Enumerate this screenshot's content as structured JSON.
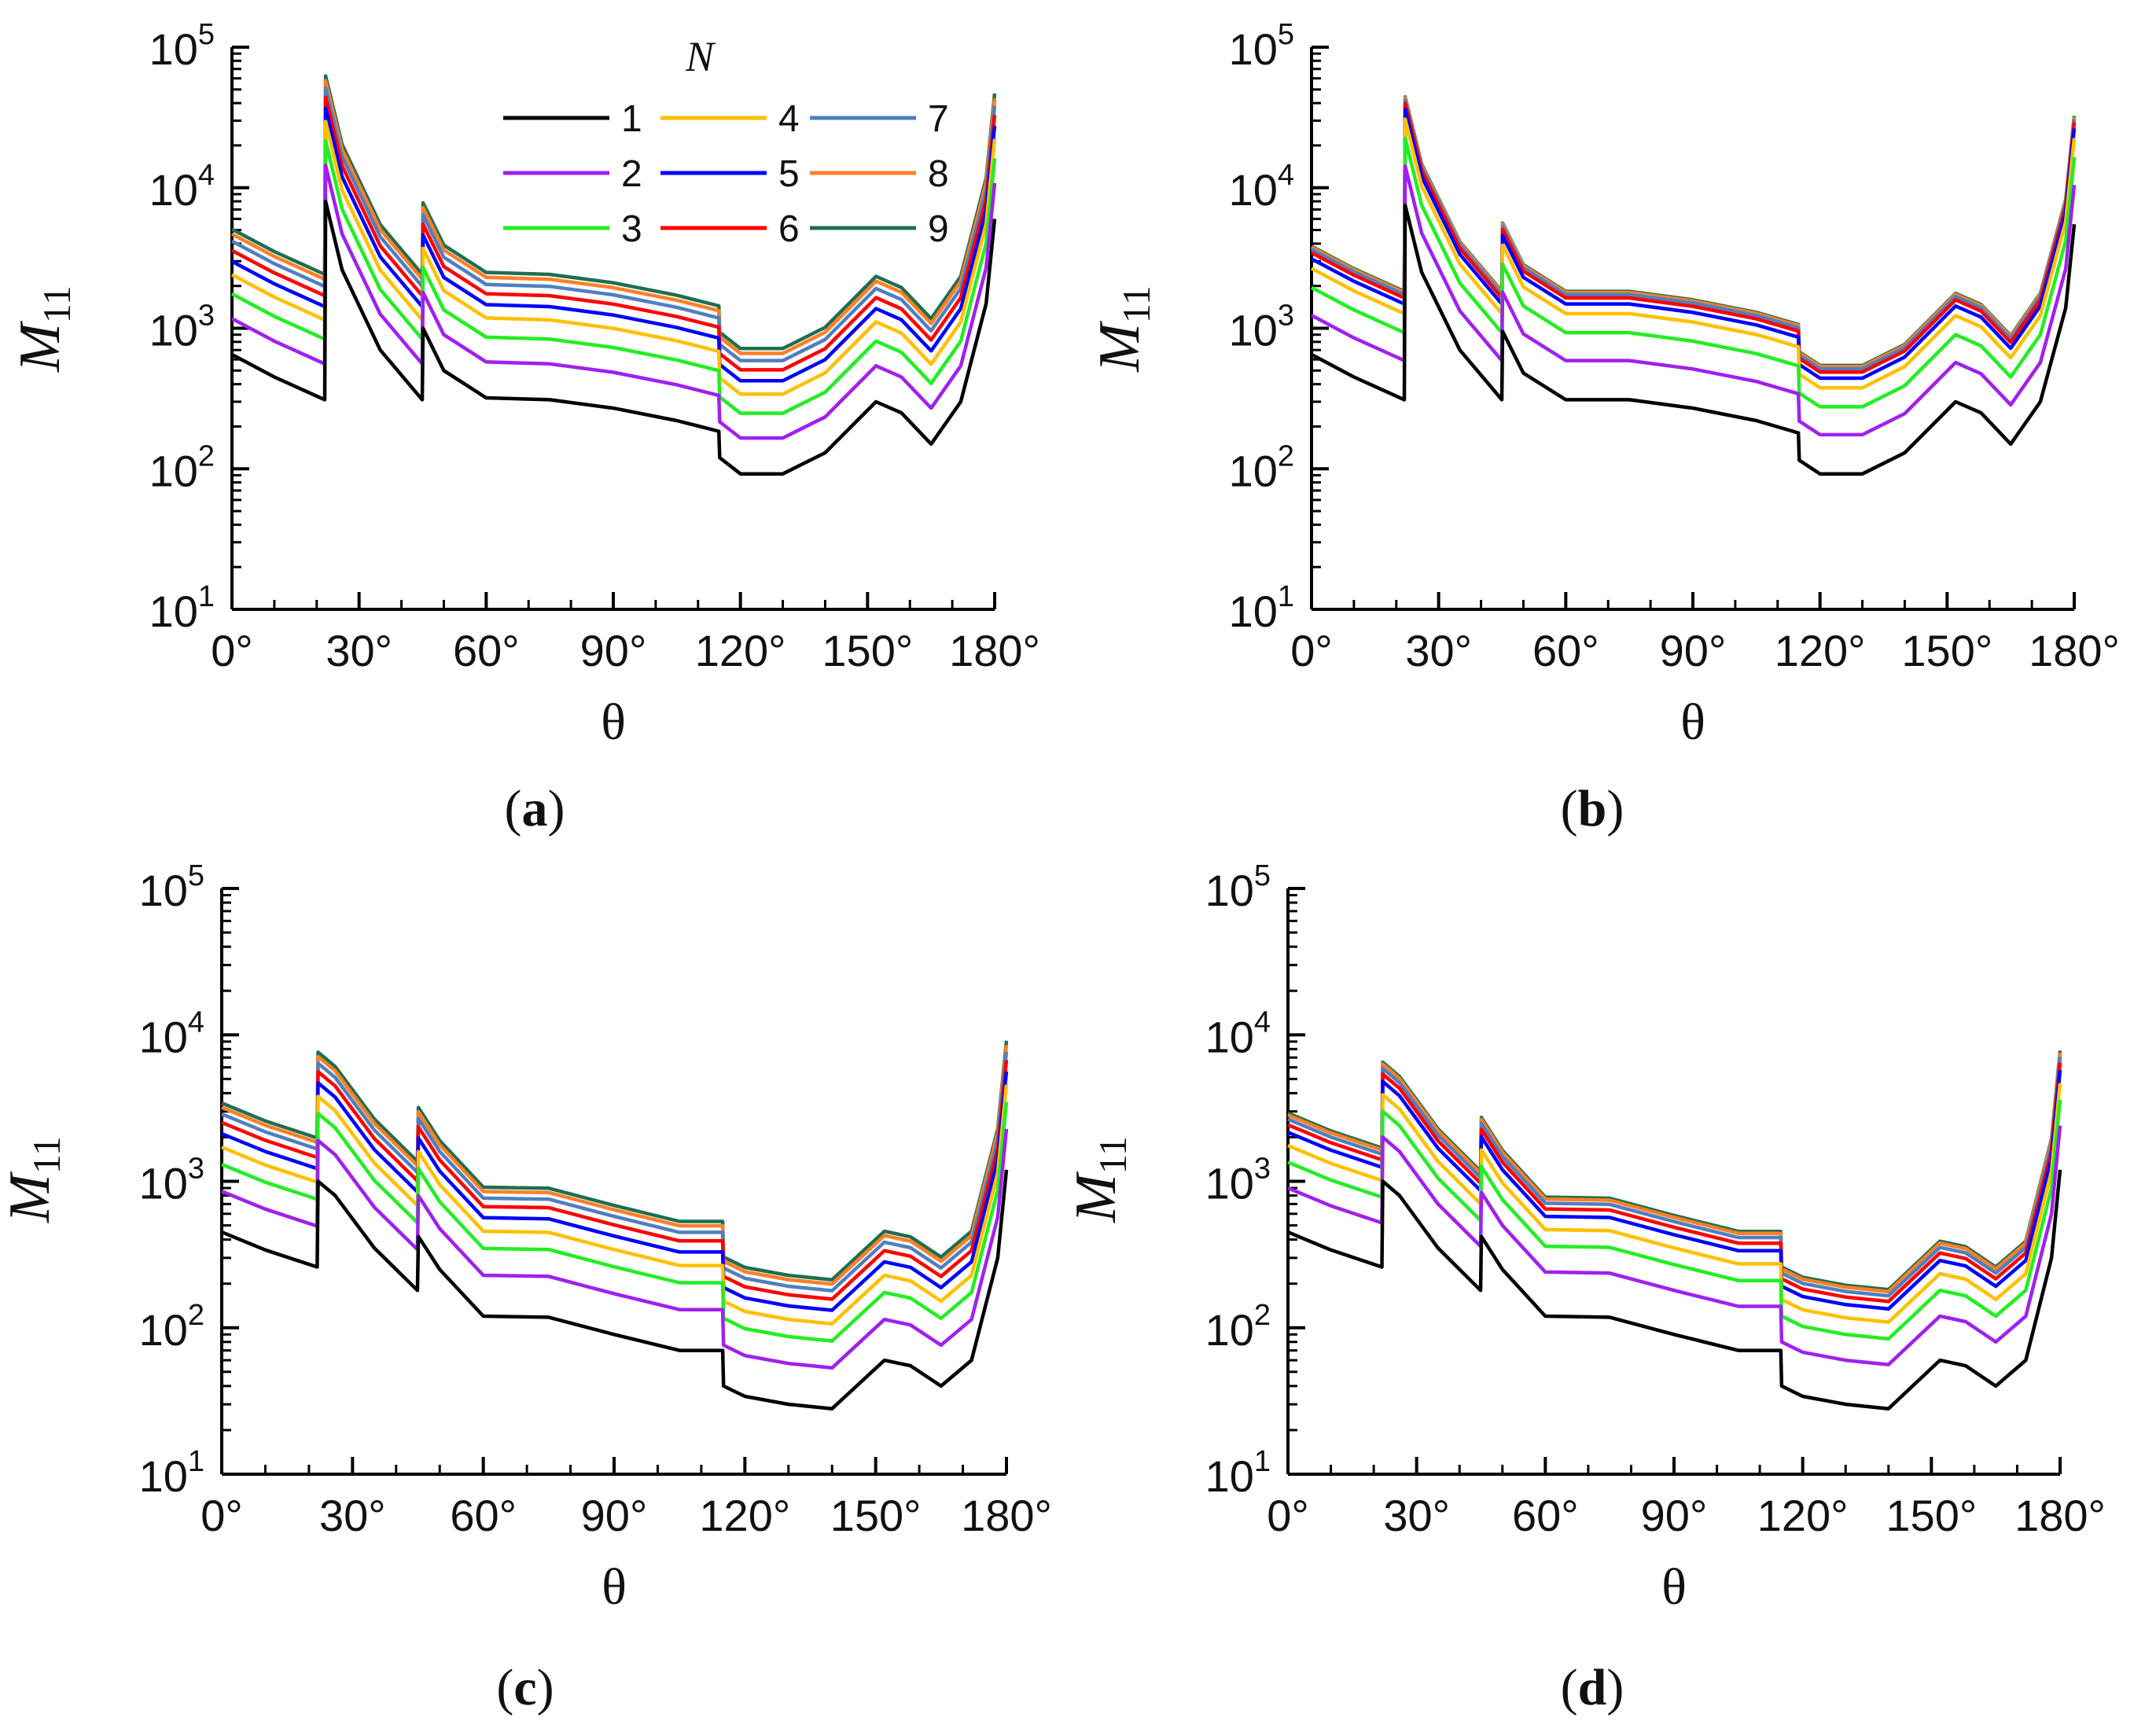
{
  "figure": {
    "description": "Four panels of M11 versus scattering angle theta for N = 1..9"
  },
  "legend": {
    "title": "N",
    "entries": [
      "1",
      "2",
      "3",
      "4",
      "5",
      "6",
      "7",
      "8",
      "9"
    ],
    "colors": [
      "#000000",
      "#a020f0",
      "#22ee22",
      "#ffc000",
      "#0000ff",
      "#ff0000",
      "#4f7fc0",
      "#ff7f27",
      "#1f6f4f"
    ]
  },
  "chart_data": [
    {
      "panel": "a",
      "label_text": "a",
      "type": "line",
      "xlabel": "θ",
      "ylabel": "M",
      "ylabel_sub": "11",
      "yscale": "log",
      "xlim": [
        0,
        180
      ],
      "ylim": [
        10,
        100000
      ],
      "xticks": [
        "0°",
        "30°",
        "60°",
        "90°",
        "120°",
        "150°",
        "180°"
      ],
      "yticks_exp": [
        "1",
        "2",
        "3",
        "4",
        "5"
      ],
      "base_x": [
        0,
        10,
        21.9,
        22.1,
        26,
        35,
        44.9,
        45.1,
        50,
        60,
        75,
        90,
        105,
        114.9,
        115.1,
        120,
        130,
        140,
        152,
        158,
        165,
        172,
        178,
        180
      ],
      "base_y": [
        650,
        450,
        310,
        8000,
        2600,
        700,
        310,
        1000,
        500,
        320,
        310,
        270,
        220,
        185,
        120,
        92,
        92,
        130,
        300,
        250,
        150,
        300,
        1500,
        6000
      ],
      "series": [
        {
          "name": "1",
          "factor": 1.0
        },
        {
          "name": "2",
          "factor": 1.8
        },
        {
          "name": "3",
          "factor": 2.7
        },
        {
          "name": "4",
          "factor": 3.7
        },
        {
          "name": "5",
          "factor": 4.6
        },
        {
          "name": "6",
          "factor": 5.5
        },
        {
          "name": "7",
          "factor": 6.4
        },
        {
          "name": "8",
          "factor": 7.2
        },
        {
          "name": "9",
          "factor": 7.8
        }
      ],
      "show_legend": true
    },
    {
      "panel": "b",
      "label_text": "b",
      "type": "line",
      "xlabel": "θ",
      "ylabel": "M",
      "ylabel_sub": "11",
      "yscale": "log",
      "xlim": [
        0,
        180
      ],
      "ylim": [
        10,
        100000
      ],
      "xticks": [
        "0°",
        "30°",
        "60°",
        "90°",
        "120°",
        "150°",
        "180°"
      ],
      "yticks_exp": [
        "1",
        "2",
        "3",
        "4",
        "5"
      ],
      "base_x": [
        0,
        10,
        21.9,
        22.1,
        26,
        35,
        44.9,
        45.1,
        50,
        60,
        75,
        90,
        105,
        114.9,
        115.1,
        120,
        130,
        140,
        152,
        158,
        165,
        172,
        178,
        180
      ],
      "base_y": [
        650,
        450,
        310,
        7500,
        2500,
        700,
        310,
        950,
        480,
        310,
        310,
        270,
        220,
        180,
        115,
        92,
        92,
        130,
        300,
        250,
        150,
        300,
        1400,
        5500
      ],
      "series": [
        {
          "name": "1",
          "factor": 1.0
        },
        {
          "name": "2",
          "factor": 1.9
        },
        {
          "name": "3",
          "factor": 3.0
        },
        {
          "name": "4",
          "factor": 4.1
        },
        {
          "name": "5",
          "factor": 4.8
        },
        {
          "name": "6",
          "factor": 5.3
        },
        {
          "name": "7",
          "factor": 5.6
        },
        {
          "name": "8",
          "factor": 5.8
        },
        {
          "name": "9",
          "factor": 5.9
        }
      ],
      "show_legend": false
    },
    {
      "panel": "c",
      "label_text": "c",
      "type": "line",
      "xlabel": "θ",
      "ylabel": "M",
      "ylabel_sub": "11",
      "yscale": "log",
      "xlim": [
        0,
        180
      ],
      "ylim": [
        10,
        100000
      ],
      "xticks": [
        "0°",
        "30°",
        "60°",
        "90°",
        "120°",
        "150°",
        "180°"
      ],
      "yticks_exp": [
        "1",
        "2",
        "3",
        "4",
        "5"
      ],
      "base_x": [
        0,
        10,
        21.9,
        22.1,
        26,
        35,
        44.9,
        45.1,
        50,
        60,
        75,
        90,
        105,
        114.9,
        115.1,
        120,
        130,
        140,
        152,
        158,
        165,
        172,
        178,
        180
      ],
      "base_y": [
        450,
        340,
        260,
        1000,
        800,
        350,
        180,
        420,
        250,
        120,
        118,
        90,
        70,
        70,
        40,
        34,
        30,
        28,
        60,
        55,
        40,
        60,
        300,
        1200
      ],
      "series": [
        {
          "name": "1",
          "factor": 1.0
        },
        {
          "name": "2",
          "factor": 1.9
        },
        {
          "name": "3",
          "factor": 2.9
        },
        {
          "name": "4",
          "factor": 3.8
        },
        {
          "name": "5",
          "factor": 4.7
        },
        {
          "name": "6",
          "factor": 5.6
        },
        {
          "name": "7",
          "factor": 6.4
        },
        {
          "name": "8",
          "factor": 7.1
        },
        {
          "name": "9",
          "factor": 7.6
        }
      ],
      "show_legend": false
    },
    {
      "panel": "d",
      "label_text": "d",
      "type": "line",
      "xlabel": "θ",
      "ylabel": "M",
      "ylabel_sub": "11",
      "yscale": "log",
      "xlim": [
        0,
        180
      ],
      "ylim": [
        10,
        100000
      ],
      "xticks": [
        "0°",
        "30°",
        "60°",
        "90°",
        "120°",
        "150°",
        "180°"
      ],
      "yticks_exp": [
        "1",
        "2",
        "3",
        "4",
        "5"
      ],
      "base_x": [
        0,
        10,
        21.9,
        22.1,
        26,
        35,
        44.9,
        45.1,
        50,
        60,
        75,
        90,
        105,
        114.9,
        115.1,
        120,
        130,
        140,
        152,
        158,
        165,
        172,
        178,
        180
      ],
      "base_y": [
        450,
        340,
        260,
        1000,
        800,
        350,
        180,
        420,
        250,
        120,
        118,
        90,
        70,
        70,
        40,
        34,
        30,
        28,
        60,
        55,
        40,
        60,
        300,
        1200
      ],
      "series": [
        {
          "name": "1",
          "factor": 1.0
        },
        {
          "name": "2",
          "factor": 2.0
        },
        {
          "name": "3",
          "factor": 3.0
        },
        {
          "name": "4",
          "factor": 3.9
        },
        {
          "name": "5",
          "factor": 4.8
        },
        {
          "name": "6",
          "factor": 5.4
        },
        {
          "name": "7",
          "factor": 5.9
        },
        {
          "name": "8",
          "factor": 6.3
        },
        {
          "name": "9",
          "factor": 6.5
        }
      ],
      "show_legend": false
    }
  ]
}
